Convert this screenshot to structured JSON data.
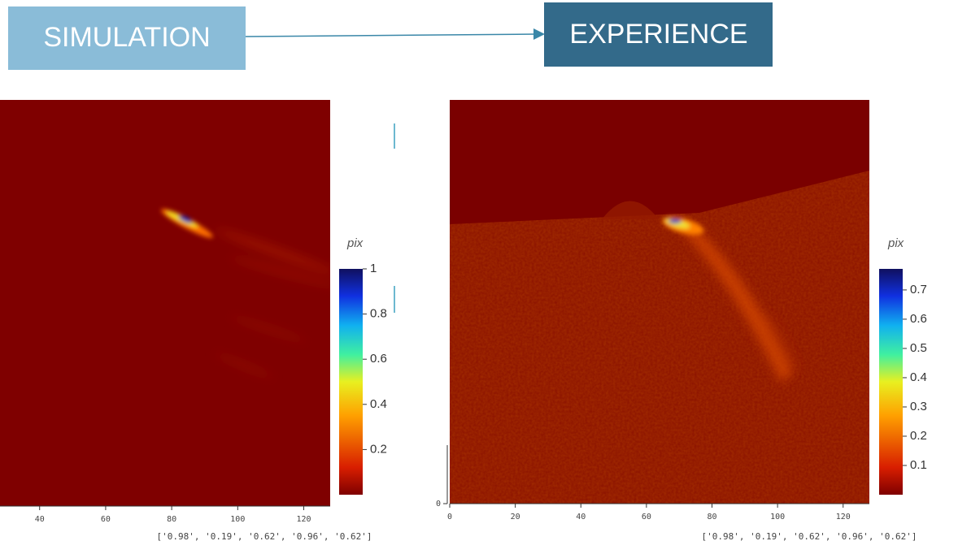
{
  "header": {
    "left_box": "SIMULATION",
    "right_box": "EXPERIENCE"
  },
  "panels": [
    {
      "xlim": [
        28,
        128
      ],
      "xticks": [
        40,
        60,
        80,
        100,
        120
      ],
      "colorbar": {
        "label": "pix",
        "clim": [
          0,
          1
        ],
        "ticks": [
          0.2,
          0.4,
          0.6,
          0.8,
          1
        ]
      },
      "caption": "['0.98', '0.19', '0.62', '0.96', '0.62']"
    },
    {
      "xlim": [
        0,
        128
      ],
      "xticks": [
        0,
        20,
        40,
        60,
        80,
        100,
        120
      ],
      "ylim": [
        0,
        128
      ],
      "yticks": [
        0
      ],
      "colorbar": {
        "label": "pix",
        "clim": [
          0,
          0.772
        ],
        "ticks": [
          0.1,
          0.2,
          0.3,
          0.4,
          0.5,
          0.6,
          0.7
        ]
      },
      "caption": "['0.98', '0.19', '0.62', '0.96', '0.62']"
    }
  ]
}
